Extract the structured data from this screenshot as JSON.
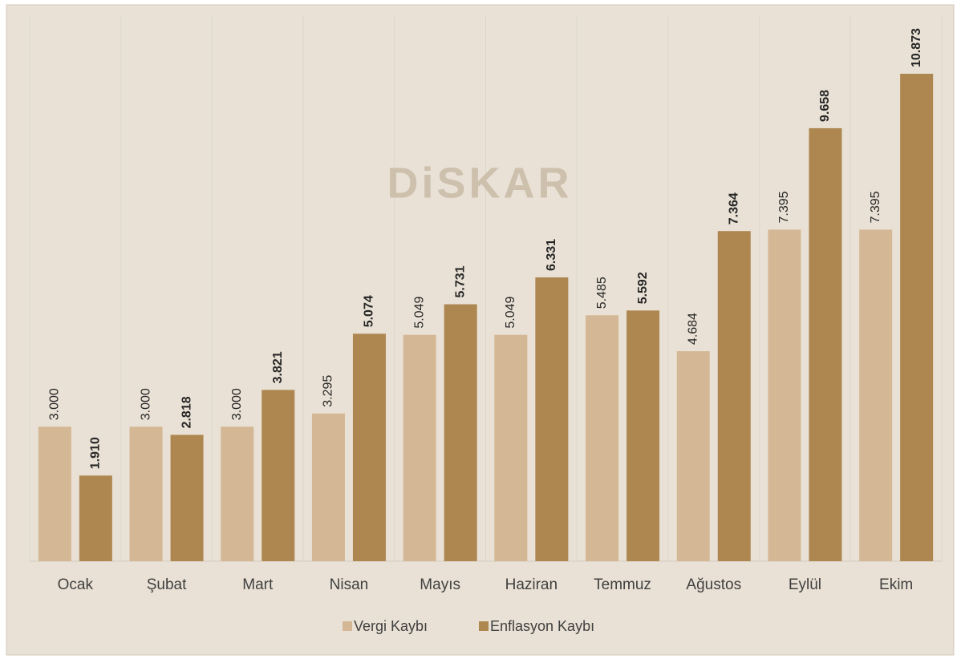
{
  "chart_data": {
    "type": "bar",
    "watermark": "DiSKAR",
    "categories": [
      "Ocak",
      "Şubat",
      "Mart",
      "Nisan",
      "Mayıs",
      "Haziran",
      "Temmuz",
      "Ağustos",
      "Eylül",
      "Ekim"
    ],
    "series": [
      {
        "name": "Vergi Kaybı",
        "color": "#d4b794",
        "values": [
          3000,
          3000,
          3000,
          3295,
          5049,
          5049,
          5485,
          4684,
          7395,
          7395
        ],
        "value_labels": [
          "3.000",
          "3.000",
          "3.000",
          "3.295",
          "5.049",
          "5.049",
          "5.485",
          "4.684",
          "7.395",
          "7.395"
        ]
      },
      {
        "name": "Enflasyon Kaybı",
        "color": "#ad874f",
        "values": [
          1910,
          2818,
          3821,
          5074,
          5731,
          6331,
          5592,
          7364,
          9658,
          10873
        ],
        "value_labels": [
          "1.910",
          "2.818",
          "3.821",
          "5.074",
          "5.731",
          "6.331",
          "5.592",
          "7.364",
          "9.658",
          "10.873"
        ]
      }
    ]
  }
}
